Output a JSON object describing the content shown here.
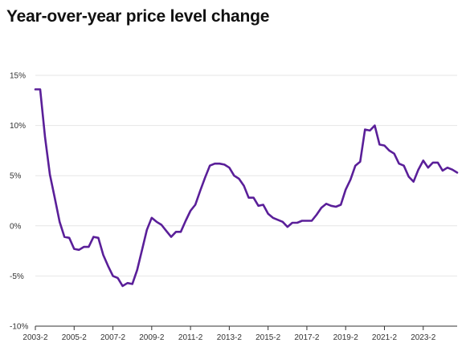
{
  "chart_data": {
    "type": "line",
    "title": "Year-over-year price level change",
    "xlabel": "",
    "ylabel": "",
    "ylim": [
      -10,
      15
    ],
    "yticks": [
      {
        "value": 15,
        "label": "15%"
      },
      {
        "value": 10,
        "label": "10%"
      },
      {
        "value": 5,
        "label": "5%"
      },
      {
        "value": 0,
        "label": "0%"
      },
      {
        "value": -5,
        "label": "-5%"
      },
      {
        "value": -10,
        "label": "-10%"
      }
    ],
    "xticks": [
      {
        "value": 0,
        "label": "2003-2"
      },
      {
        "value": 8,
        "label": "2005-2"
      },
      {
        "value": 16,
        "label": "2007-2"
      },
      {
        "value": 24,
        "label": "2009-2"
      },
      {
        "value": 32,
        "label": "2011-2"
      },
      {
        "value": 40,
        "label": "2013-2"
      },
      {
        "value": 48,
        "label": "2015-2"
      },
      {
        "value": 56,
        "label": "2017-2"
      },
      {
        "value": 64,
        "label": "2019-2"
      },
      {
        "value": 72,
        "label": "2021-2"
      },
      {
        "value": 80,
        "label": "2023-2"
      }
    ],
    "grid": true,
    "line_color": "#5a1f99",
    "series": [
      {
        "values": [
          13.6,
          13.6,
          8.8,
          5.1,
          2.8,
          0.4,
          -1.1,
          -1.2,
          -2.3,
          -2.4,
          -2.1,
          -2.1,
          -1.1,
          -1.2,
          -2.9,
          -4.0,
          -5.0,
          -5.2,
          -6.0,
          -5.7,
          -5.8,
          -4.4,
          -2.4,
          -0.4,
          0.8,
          0.4,
          0.1,
          -0.5,
          -1.1,
          -0.6,
          -0.6,
          0.5,
          1.5,
          2.1,
          3.5,
          4.8,
          6.0,
          6.2,
          6.2,
          6.1,
          5.8,
          5.0,
          4.7,
          4.0,
          2.8,
          2.8,
          2.0,
          2.1,
          1.2,
          0.8,
          0.6,
          0.4,
          -0.1,
          0.3,
          0.3,
          0.5,
          0.5,
          0.5,
          1.1,
          1.8,
          2.2,
          2.0,
          1.9,
          2.1,
          3.6,
          4.6,
          6.0,
          6.4,
          9.6,
          9.5,
          10.0,
          8.1,
          8.0,
          7.5,
          7.2,
          6.2,
          6.0,
          4.9,
          4.4,
          5.6,
          6.5,
          5.8,
          6.3,
          6.3,
          5.5,
          5.8,
          5.6,
          5.3
        ]
      }
    ]
  }
}
